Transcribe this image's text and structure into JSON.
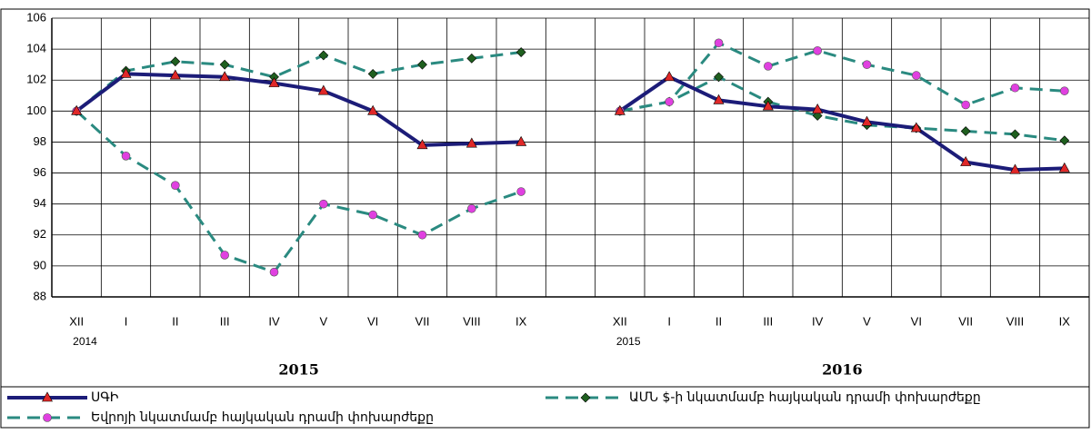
{
  "chart_data": {
    "type": "line",
    "categories": [
      "XII",
      "I",
      "II",
      "III",
      "IV",
      "V",
      "VI",
      "VII",
      "VIII",
      "IX",
      null,
      "XII",
      "I",
      "II",
      "III",
      "IV",
      "V",
      "VI",
      "VII",
      "VIII",
      "IX"
    ],
    "year_labels": [
      "2014",
      "2015"
    ],
    "groups": [
      "2015",
      "2016"
    ],
    "ylim": [
      88,
      106
    ],
    "yticks": [
      88,
      90,
      92,
      94,
      96,
      98,
      100,
      102,
      104,
      106
    ],
    "grid": true,
    "series": [
      {
        "name": "ՍԳԻ",
        "color": "#1c1c78",
        "marker": "triangle",
        "marker_color": "#e02828",
        "dashed": false,
        "values": [
          100,
          102.4,
          102.3,
          102.2,
          101.8,
          101.3,
          100.0,
          97.8,
          97.9,
          98.0,
          null,
          100,
          102.2,
          100.7,
          100.3,
          100.1,
          99.3,
          98.9,
          96.7,
          96.2,
          96.3
        ]
      },
      {
        "name": "ԱՄՆ $-ի նկատմամբ հայկական դրամի փոխարժեքը",
        "color": "#2a8a80",
        "marker": "diamond",
        "marker_color": "#1f5f1f",
        "dashed": true,
        "values": [
          100,
          102.6,
          103.2,
          103.0,
          102.2,
          103.6,
          102.4,
          103.0,
          103.4,
          103.8,
          null,
          100,
          100.6,
          102.2,
          100.6,
          99.7,
          99.1,
          98.9,
          98.7,
          98.5,
          98.1
        ]
      },
      {
        "name": "Եվրոյի նկատմամբ հայկական դրամի փոխարժեքը",
        "color": "#2a8a80",
        "marker": "circle",
        "marker_color": "#e040e0",
        "dashed": true,
        "values": [
          100,
          97.1,
          95.2,
          90.7,
          89.6,
          94.0,
          93.3,
          92.0,
          93.7,
          94.8,
          null,
          100,
          100.6,
          104.4,
          102.9,
          103.9,
          103.0,
          102.3,
          100.4,
          101.5,
          101.3
        ]
      }
    ]
  }
}
